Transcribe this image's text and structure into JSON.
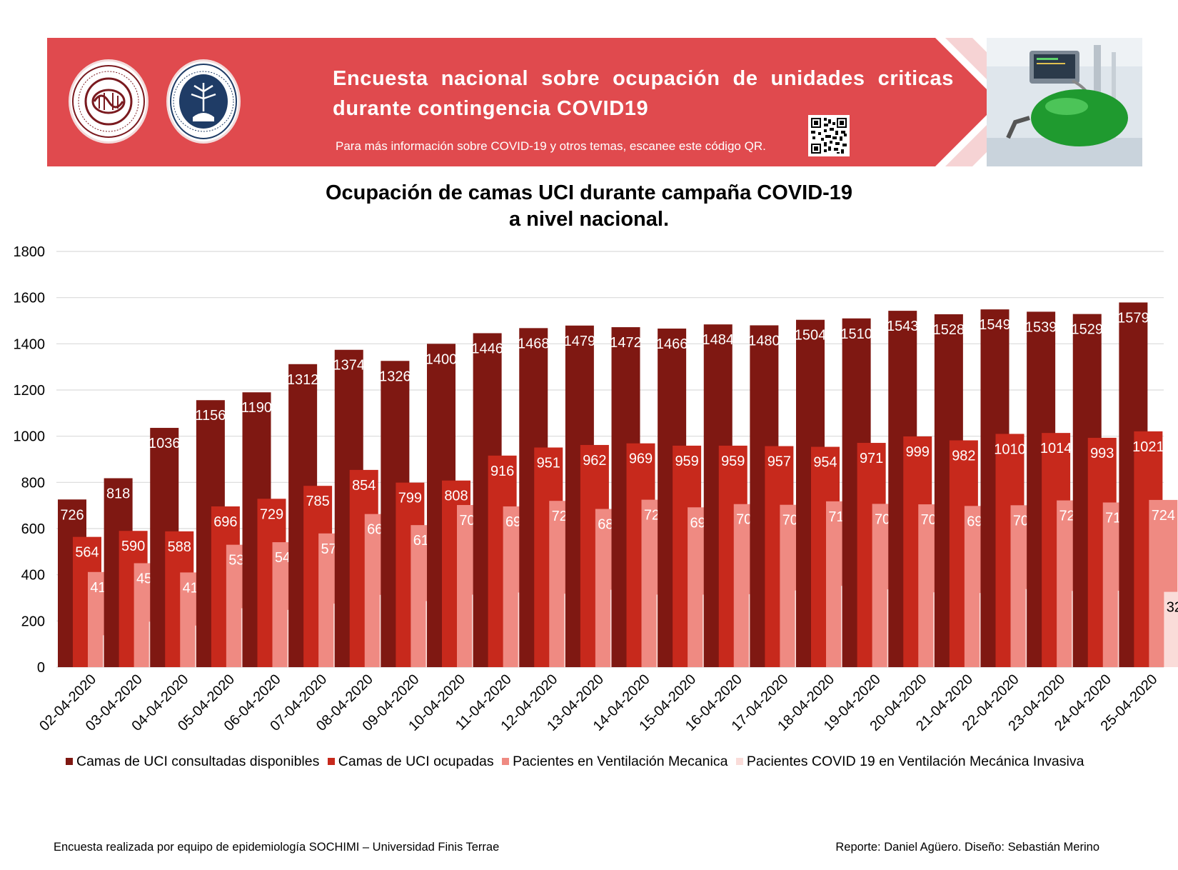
{
  "banner": {
    "title": "Encuesta nacional sobre ocupación de unidades criticas durante contingencia COVID19",
    "subtitle": "Para más información sobre COVID-19 y otros temas, escanee este código QR.",
    "seal1_text": "SOCIEDAD CHILENA DE MEDICINA INTENSIVA",
    "seal2_text": "UNIVERSIDAD FINIS TERRAE · VINCE IN BONO MALUM",
    "color": "#e04a4e"
  },
  "chart_data": {
    "type": "bar",
    "title": "Ocupación de camas UCI durante campaña COVID-19 a nivel nacional.",
    "title_lines": [
      "Ocupación de camas UCI durante campaña COVID-19",
      "a nivel nacional."
    ],
    "ylim": [
      0,
      1800
    ],
    "yticks": [
      0,
      200,
      400,
      600,
      800,
      1000,
      1200,
      1400,
      1600,
      1800
    ],
    "grid": true,
    "legend_position": "bottom",
    "categories": [
      "02-04-2020",
      "03-04-2020",
      "04-04-2020",
      "05-04-2020",
      "06-04-2020",
      "07-04-2020",
      "08-04-2020",
      "09-04-2020",
      "10-04-2020",
      "11-04-2020",
      "12-04-2020",
      "13-04-2020",
      "14-04-2020",
      "15-04-2020",
      "16-04-2020",
      "17-04-2020",
      "18-04-2020",
      "19-04-2020",
      "20-04-2020",
      "21-04-2020",
      "22-04-2020",
      "23-04-2020",
      "24-04-2020",
      "25-04-2020"
    ],
    "series": [
      {
        "name": "Camas de UCI consultadas disponibles",
        "color": "#7f1812",
        "values": [
          726,
          818,
          1036,
          1156,
          1190,
          1312,
          1374,
          1326,
          1400,
          1446,
          1468,
          1479,
          1472,
          1466,
          1484,
          1480,
          1504,
          1510,
          1543,
          1528,
          1549,
          1539,
          1529,
          1579
        ]
      },
      {
        "name": "Camas de UCI ocupadas",
        "color": "#c7291c",
        "values": [
          564,
          590,
          588,
          696,
          729,
          785,
          854,
          799,
          808,
          916,
          951,
          962,
          969,
          959,
          959,
          957,
          954,
          971,
          999,
          982,
          1010,
          1014,
          993,
          1021
        ]
      },
      {
        "name": "Pacientes en Ventilación Mecanica",
        "color": "#ef8a82",
        "values": [
          412,
          450,
          410,
          530,
          541,
          579,
          663,
          615,
          702,
          696,
          720,
          685,
          725,
          692,
          706,
          703,
          718,
          707,
          705,
          698,
          701,
          722,
          713,
          724
        ]
      },
      {
        "name": "Pacientes COVID 19 en Ventilación Mecánica Invasiva",
        "color": "#fadcd9",
        "values": [
          138,
          197,
          180,
          255,
          248,
          275,
          313,
          286,
          314,
          323,
          318,
          335,
          314,
          314,
          316,
          332,
          352,
          337,
          324,
          321,
          338,
          330,
          331,
          326
        ]
      }
    ]
  },
  "footer": {
    "left": "Encuesta realizada por equipo de epidemiología SOCHIMI – Universidad Finis Terrae",
    "right": "Reporte: Daniel Agüero. Diseño: Sebastián Merino"
  }
}
